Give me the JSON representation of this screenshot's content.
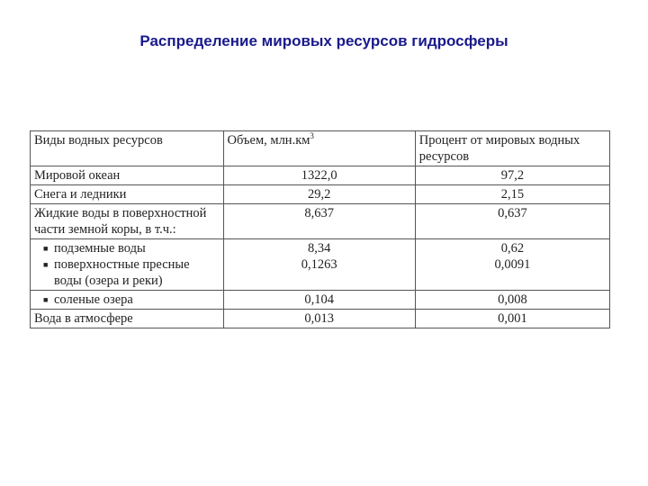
{
  "title": "Распределение мировых ресурсов гидросферы",
  "table": {
    "headers": {
      "col1": "Виды водных ресурсов",
      "col2": "Объем, млн.км",
      "col2_sup": "3",
      "col3": "Процент от мировых водных ресурсов"
    },
    "rows": {
      "ocean": {
        "label": "Мировой океан",
        "volume": "1322,0",
        "percent": "97,2"
      },
      "snow": {
        "label": "Снега и ледники",
        "volume": "29,2",
        "percent": "2,15"
      },
      "liquid": {
        "label": "Жидкие воды в поверхностной части земной коры, в т.ч.:",
        "volume": "8,637",
        "percent": "0,637"
      },
      "underground": {
        "label": "подземные воды",
        "volume": "8,34",
        "percent": "0,62"
      },
      "surface": {
        "label": "поверхностные пресные воды (озера и реки)",
        "volume": "0,1263",
        "percent": "0,0091"
      },
      "salt_lakes": {
        "label": "соленые озера",
        "volume": "0,104",
        "percent": "0,008"
      },
      "atmosphere": {
        "label": "Вода в атмосфере",
        "volume": "0,013",
        "percent": "0,001"
      }
    }
  }
}
